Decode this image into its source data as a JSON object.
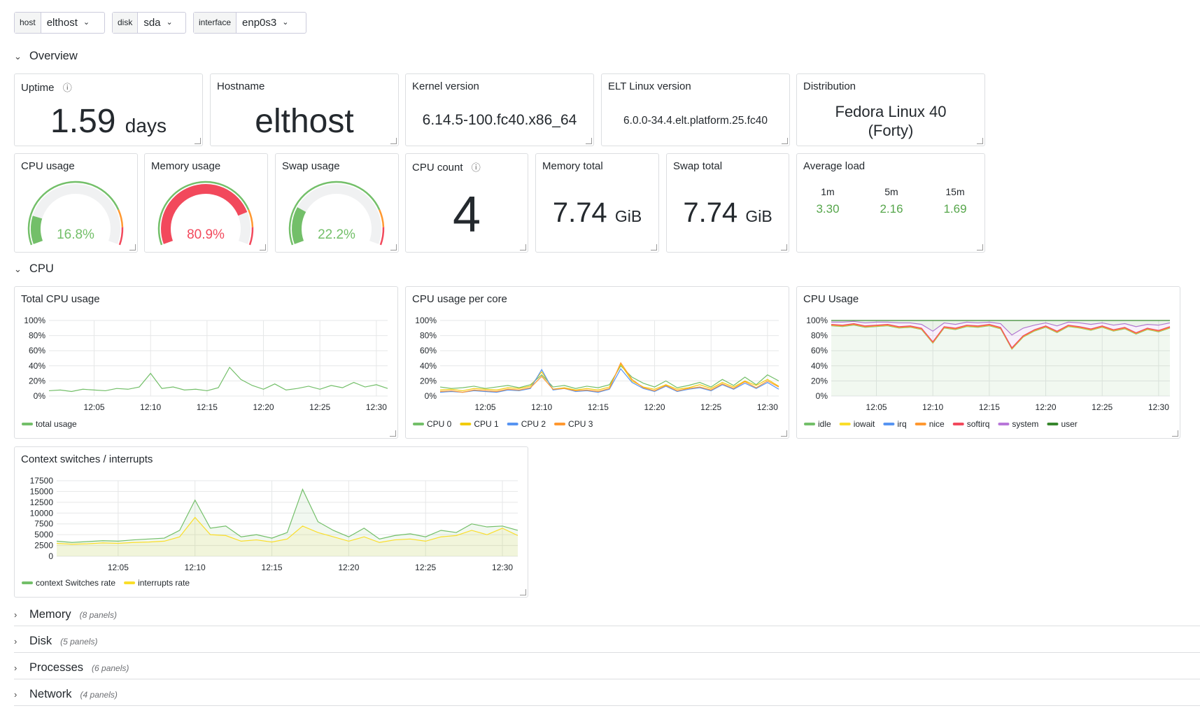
{
  "variables": [
    {
      "label": "host",
      "value": "elthost"
    },
    {
      "label": "disk",
      "value": "sda"
    },
    {
      "label": "interface",
      "value": "enp0s3"
    }
  ],
  "rows": [
    {
      "title": "Overview"
    },
    {
      "title": "CPU"
    },
    {
      "title": "Memory",
      "note": "(8 panels)"
    },
    {
      "title": "Disk",
      "note": "(5 panels)"
    },
    {
      "title": "Processes",
      "note": "(6 panels)"
    },
    {
      "title": "Network",
      "note": "(4 panels)"
    }
  ],
  "overview": {
    "uptime": {
      "title": "Uptime",
      "value": 1.59,
      "unit": "days"
    },
    "hostname": {
      "title": "Hostname",
      "value": "elthost"
    },
    "kernel": {
      "title": "Kernel version",
      "value": "6.14.5-100.fc40.x86_64"
    },
    "elt": {
      "title": "ELT Linux version",
      "value": "6.0.0-34.4.elt.platform.25.fc40"
    },
    "distribution": {
      "title": "Distribution",
      "value": "Fedora Linux 40 (Forty)"
    },
    "gauges": [
      {
        "title": "CPU usage",
        "value": 16.8,
        "value_label": "16.8%",
        "color": "#73bf69",
        "range": [
          0,
          100
        ]
      },
      {
        "title": "Memory usage",
        "value": 80.9,
        "value_label": "80.9%",
        "color": "#f2495c",
        "range": [
          0,
          100
        ]
      },
      {
        "title": "Swap usage",
        "value": 22.2,
        "value_label": "22.2%",
        "color": "#73bf69",
        "range": [
          0,
          100
        ]
      }
    ],
    "cpu_count": {
      "title": "CPU count",
      "value": 4
    },
    "memory_total": {
      "title": "Memory total",
      "value": 7.74,
      "unit": "GiB"
    },
    "swap_total": {
      "title": "Swap total",
      "value": 7.74,
      "unit": "GiB"
    },
    "load": {
      "title": "Average load",
      "items": [
        {
          "label": "1m",
          "value": 3.3,
          "value_label": "3.30"
        },
        {
          "label": "5m",
          "value": 2.16,
          "value_label": "2.16"
        },
        {
          "label": "15m",
          "value": 1.69,
          "value_label": "1.69"
        }
      ]
    }
  },
  "charts": [
    {
      "type": "line",
      "title": "Total CPU usage",
      "x": [
        "12:01",
        "12:02",
        "12:03",
        "12:04",
        "12:05",
        "12:06",
        "12:07",
        "12:08",
        "12:09",
        "12:10",
        "12:11",
        "12:12",
        "12:13",
        "12:14",
        "12:15",
        "12:16",
        "12:17",
        "12:18",
        "12:19",
        "12:20",
        "12:21",
        "12:22",
        "12:23",
        "12:24",
        "12:25",
        "12:26",
        "12:27",
        "12:28",
        "12:29",
        "12:30",
        "12:31"
      ],
      "xticks": [
        "12:05",
        "12:10",
        "12:15",
        "12:20",
        "12:25",
        "12:30"
      ],
      "ylim": [
        0,
        100
      ],
      "yticks": [
        {
          "value": 0,
          "label": "0%"
        },
        {
          "value": 20,
          "label": "20%"
        },
        {
          "value": 40,
          "label": "40%"
        },
        {
          "value": 60,
          "label": "60%"
        },
        {
          "value": 80,
          "label": "80%"
        },
        {
          "value": 100,
          "label": "100%"
        }
      ],
      "series": [
        {
          "name": "total usage",
          "color": "#73bf69",
          "values": [
            7,
            8,
            6,
            9,
            8,
            7,
            10,
            9,
            12,
            30,
            10,
            12,
            8,
            9,
            7,
            11,
            38,
            22,
            14,
            9,
            16,
            8,
            10,
            13,
            9,
            14,
            11,
            18,
            12,
            15,
            10
          ]
        }
      ]
    },
    {
      "type": "line",
      "title": "CPU usage per core",
      "x": [
        "12:01",
        "12:02",
        "12:03",
        "12:04",
        "12:05",
        "12:06",
        "12:07",
        "12:08",
        "12:09",
        "12:10",
        "12:11",
        "12:12",
        "12:13",
        "12:14",
        "12:15",
        "12:16",
        "12:17",
        "12:18",
        "12:19",
        "12:20",
        "12:21",
        "12:22",
        "12:23",
        "12:24",
        "12:25",
        "12:26",
        "12:27",
        "12:28",
        "12:29",
        "12:30",
        "12:31"
      ],
      "xticks": [
        "12:05",
        "12:10",
        "12:15",
        "12:20",
        "12:25",
        "12:30"
      ],
      "ylim": [
        0,
        100
      ],
      "yticks": [
        {
          "value": 0,
          "label": "0%"
        },
        {
          "value": 20,
          "label": "20%"
        },
        {
          "value": 40,
          "label": "40%"
        },
        {
          "value": 60,
          "label": "60%"
        },
        {
          "value": 80,
          "label": "80%"
        },
        {
          "value": 100,
          "label": "100%"
        }
      ],
      "series": [
        {
          "name": "CPU 0",
          "color": "#73bf69",
          "values": [
            12,
            10,
            11,
            13,
            10,
            12,
            14,
            11,
            15,
            28,
            12,
            14,
            10,
            13,
            11,
            15,
            40,
            25,
            17,
            12,
            20,
            11,
            14,
            18,
            12,
            22,
            14,
            25,
            15,
            28,
            20
          ]
        },
        {
          "name": "CPU 1",
          "color": "#f2cc0c",
          "values": [
            8,
            9,
            7,
            10,
            9,
            8,
            11,
            10,
            13,
            32,
            9,
            11,
            8,
            10,
            8,
            12,
            42,
            20,
            12,
            9,
            15,
            9,
            11,
            15,
            10,
            18,
            12,
            20,
            14,
            22,
            13
          ]
        },
        {
          "name": "CPU 2",
          "color": "#5794f2",
          "values": [
            5,
            6,
            5,
            7,
            6,
            5,
            8,
            7,
            10,
            35,
            8,
            10,
            6,
            7,
            5,
            9,
            36,
            18,
            10,
            6,
            13,
            6,
            9,
            11,
            7,
            15,
            9,
            17,
            10,
            18,
            9
          ]
        },
        {
          "name": "CPU 3",
          "color": "#ff9830",
          "values": [
            6,
            7,
            5,
            8,
            7,
            6,
            9,
            8,
            11,
            26,
            9,
            10,
            7,
            8,
            6,
            10,
            44,
            22,
            11,
            7,
            14,
            7,
            10,
            12,
            8,
            16,
            10,
            19,
            11,
            20,
            12
          ]
        }
      ]
    },
    {
      "type": "line",
      "title": "CPU Usage",
      "stacked": true,
      "fill": true,
      "x": [
        "12:01",
        "12:02",
        "12:03",
        "12:04",
        "12:05",
        "12:06",
        "12:07",
        "12:08",
        "12:09",
        "12:10",
        "12:11",
        "12:12",
        "12:13",
        "12:14",
        "12:15",
        "12:16",
        "12:17",
        "12:18",
        "12:19",
        "12:20",
        "12:21",
        "12:22",
        "12:23",
        "12:24",
        "12:25",
        "12:26",
        "12:27",
        "12:28",
        "12:29",
        "12:30",
        "12:31"
      ],
      "xticks": [
        "12:05",
        "12:10",
        "12:15",
        "12:20",
        "12:25",
        "12:30"
      ],
      "ylim": [
        0,
        100
      ],
      "yticks": [
        {
          "value": 0,
          "label": "0%"
        },
        {
          "value": 20,
          "label": "20%"
        },
        {
          "value": 40,
          "label": "40%"
        },
        {
          "value": 60,
          "label": "60%"
        },
        {
          "value": 80,
          "label": "80%"
        },
        {
          "value": 100,
          "label": "100%"
        }
      ],
      "series": [
        {
          "name": "idle",
          "color": "#73bf69",
          "values": [
            93,
            92,
            94,
            91,
            92,
            93,
            90,
            91,
            88,
            70,
            90,
            88,
            92,
            91,
            93,
            89,
            62,
            78,
            86,
            91,
            84,
            92,
            90,
            87,
            91,
            86,
            89,
            82,
            88,
            85,
            90
          ]
        },
        {
          "name": "iowait",
          "color": "#fade2a",
          "values": [
            0.5,
            0.5,
            0.5,
            0.5,
            0.5,
            0.5,
            0.5,
            0.5,
            0.5,
            0.5,
            0.5,
            0.5,
            0.5,
            0.5,
            0.5,
            0.5,
            0.5,
            0.5,
            0.5,
            0.5,
            0.5,
            0.5,
            0.5,
            0.5,
            0.5,
            0.5,
            0.5,
            0.5,
            0.5,
            0.5,
            0.5
          ]
        },
        {
          "name": "irq",
          "color": "#5794f2",
          "values": [
            0.3,
            0.3,
            0.3,
            0.3,
            0.3,
            0.3,
            0.3,
            0.3,
            0.3,
            0.3,
            0.3,
            0.3,
            0.3,
            0.3,
            0.3,
            0.3,
            0.3,
            0.3,
            0.3,
            0.3,
            0.3,
            0.3,
            0.3,
            0.3,
            0.3,
            0.3,
            0.3,
            0.3,
            0.3,
            0.3,
            0.3
          ]
        },
        {
          "name": "nice",
          "color": "#ff9830",
          "values": [
            0,
            0,
            0,
            0,
            0,
            0,
            0,
            0,
            0,
            0,
            0,
            0,
            0,
            0,
            0,
            0,
            0,
            0,
            0,
            0,
            0,
            0,
            0,
            0,
            0,
            0,
            0,
            0,
            0,
            0,
            0
          ]
        },
        {
          "name": "softirq",
          "color": "#f2495c",
          "values": [
            1,
            1,
            1,
            1,
            1,
            1,
            1,
            1,
            1,
            1,
            1,
            1,
            1,
            1,
            1,
            1,
            1,
            1,
            1,
            1,
            1,
            1,
            1,
            1,
            1,
            1,
            1,
            1,
            1,
            1,
            1
          ]
        },
        {
          "name": "system",
          "color": "#b877d9",
          "values": [
            3,
            4,
            3,
            4,
            4,
            3,
            5,
            4,
            5,
            14,
            5,
            5,
            4,
            4,
            3,
            5,
            17,
            10,
            6,
            4,
            7,
            4,
            5,
            6,
            4,
            6,
            5,
            8,
            5,
            7,
            5
          ]
        },
        {
          "name": "user",
          "color": "#37872d",
          "values": [
            2.2,
            2.2,
            1.2,
            3.2,
            2.2,
            2.2,
            3.2,
            3.2,
            5.2,
            14.2,
            3.2,
            5.2,
            2.2,
            3.2,
            2.2,
            4.2,
            19.2,
            10.2,
            6.2,
            3.2,
            7.2,
            2.2,
            3.2,
            5.2,
            3.2,
            6.2,
            4.2,
            8.2,
            5.2,
            6.2,
            3.2
          ]
        }
      ]
    },
    {
      "type": "line",
      "title": "Context switches / interrupts",
      "fill": true,
      "x": [
        "12:01",
        "12:02",
        "12:03",
        "12:04",
        "12:05",
        "12:06",
        "12:07",
        "12:08",
        "12:09",
        "12:10",
        "12:11",
        "12:12",
        "12:13",
        "12:14",
        "12:15",
        "12:16",
        "12:17",
        "12:18",
        "12:19",
        "12:20",
        "12:21",
        "12:22",
        "12:23",
        "12:24",
        "12:25",
        "12:26",
        "12:27",
        "12:28",
        "12:29",
        "12:30",
        "12:31"
      ],
      "xticks": [
        "12:05",
        "12:10",
        "12:15",
        "12:20",
        "12:25",
        "12:30"
      ],
      "ylim": [
        0,
        17500
      ],
      "yticks": [
        0,
        2500,
        5000,
        7500,
        10000,
        12500,
        15000,
        17500
      ],
      "series": [
        {
          "name": "context Switches rate",
          "color": "#73bf69",
          "values": [
            3500,
            3200,
            3400,
            3600,
            3500,
            3800,
            4000,
            4200,
            6000,
            13000,
            6500,
            7000,
            4500,
            5000,
            4200,
            5500,
            15500,
            8000,
            6000,
            4500,
            6500,
            4000,
            4800,
            5200,
            4500,
            6000,
            5500,
            7500,
            6800,
            7000,
            6000
          ]
        },
        {
          "name": "interrupts rate",
          "color": "#fade2a",
          "values": [
            3000,
            2800,
            2900,
            3100,
            3000,
            3200,
            3300,
            3500,
            4500,
            9000,
            5000,
            4800,
            3500,
            3800,
            3300,
            4000,
            7000,
            5500,
            4500,
            3500,
            4500,
            3200,
            3800,
            4000,
            3500,
            4500,
            4800,
            6000,
            5000,
            6500,
            4800
          ]
        }
      ]
    }
  ]
}
